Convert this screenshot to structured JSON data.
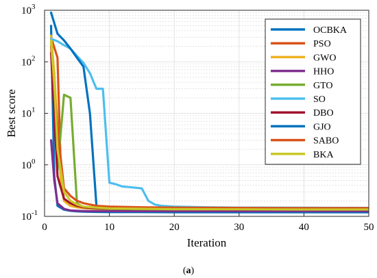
{
  "caption": {
    "open": "(",
    "letter": "a",
    "close": ")"
  },
  "chart_data": {
    "type": "line",
    "xlabel": "Iteration",
    "ylabel": "Best score",
    "xlim": [
      0,
      50
    ],
    "ylim": [
      0.1,
      1000
    ],
    "yscale": "log",
    "grid": true,
    "legend_position": "top-right",
    "xticks": [
      {
        "value": 0,
        "label": "0"
      },
      {
        "value": 10,
        "label": "10"
      },
      {
        "value": 20,
        "label": "20"
      },
      {
        "value": 30,
        "label": "30"
      },
      {
        "value": 40,
        "label": "40"
      },
      {
        "value": 50,
        "label": "50"
      }
    ],
    "yticks": [
      {
        "value": 0.1,
        "base": "10",
        "exp": "-1"
      },
      {
        "value": 1,
        "base": "10",
        "exp": "0"
      },
      {
        "value": 10,
        "base": "10",
        "exp": "1"
      },
      {
        "value": 100,
        "base": "10",
        "exp": "2"
      },
      {
        "value": 1000,
        "base": "10",
        "exp": "3"
      }
    ],
    "series": [
      {
        "name": "OCBKA",
        "color": "#0072BD",
        "x": [
          1,
          1.5,
          2,
          3,
          4,
          5,
          6,
          8,
          10,
          15,
          20,
          30,
          40,
          50
        ],
        "y": [
          500,
          0.6,
          0.16,
          0.135,
          0.128,
          0.125,
          0.123,
          0.122,
          0.121,
          0.121,
          0.12,
          0.12,
          0.12,
          0.12
        ]
      },
      {
        "name": "PSO",
        "color": "#D95319",
        "x": [
          1,
          2,
          2.5,
          3,
          4,
          5,
          6,
          8,
          10,
          15,
          20,
          30,
          40,
          50
        ],
        "y": [
          300,
          120,
          0.8,
          0.2,
          0.16,
          0.15,
          0.145,
          0.14,
          0.138,
          0.136,
          0.135,
          0.135,
          0.135,
          0.135
        ]
      },
      {
        "name": "GWO",
        "color": "#EDB120",
        "x": [
          1,
          1.5,
          2,
          2.5,
          3,
          4,
          5,
          6,
          8,
          10,
          15,
          20,
          30,
          40,
          50
        ],
        "y": [
          320,
          60,
          5,
          0.5,
          0.2,
          0.16,
          0.15,
          0.145,
          0.14,
          0.138,
          0.135,
          0.133,
          0.132,
          0.132,
          0.132
        ]
      },
      {
        "name": "HHO",
        "color": "#7E2F8E",
        "x": [
          1,
          1.5,
          2,
          3,
          4,
          5,
          6,
          8,
          10,
          15,
          20,
          30,
          40,
          50
        ],
        "y": [
          3,
          0.5,
          0.18,
          0.14,
          0.13,
          0.128,
          0.127,
          0.126,
          0.126,
          0.126,
          0.126,
          0.126,
          0.126,
          0.126
        ]
      },
      {
        "name": "GTO",
        "color": "#77AC30",
        "x": [
          1,
          2,
          3,
          4,
          5,
          6,
          8,
          10,
          15,
          20,
          30,
          40,
          50
        ],
        "y": [
          250,
          0.8,
          23,
          20,
          0.18,
          0.15,
          0.143,
          0.14,
          0.138,
          0.137,
          0.137,
          0.137,
          0.137
        ]
      },
      {
        "name": "SO",
        "color": "#4DBEEE",
        "x": [
          1,
          2,
          3,
          4,
          5,
          6,
          7,
          8,
          9,
          10,
          11,
          12,
          13,
          14,
          15,
          16,
          17,
          18,
          20,
          25,
          30,
          40,
          50
        ],
        "y": [
          280,
          250,
          210,
          180,
          130,
          95,
          60,
          30,
          30,
          0.45,
          0.42,
          0.38,
          0.37,
          0.36,
          0.35,
          0.2,
          0.17,
          0.16,
          0.155,
          0.15,
          0.148,
          0.147,
          0.146
        ]
      },
      {
        "name": "DBO",
        "color": "#A2142F",
        "x": [
          1,
          2,
          3,
          4,
          5,
          6,
          8,
          10,
          15,
          20,
          30,
          40,
          50
        ],
        "y": [
          150,
          0.6,
          0.22,
          0.18,
          0.16,
          0.15,
          0.145,
          0.142,
          0.14,
          0.138,
          0.137,
          0.137,
          0.137
        ]
      },
      {
        "name": "GJO",
        "color": "#0072BD",
        "x": [
          1,
          2,
          3,
          4,
          5,
          6,
          7,
          8,
          9,
          10,
          15,
          20,
          30,
          40,
          50
        ],
        "y": [
          900,
          350,
          260,
          180,
          120,
          80,
          10,
          0.16,
          0.15,
          0.148,
          0.145,
          0.144,
          0.143,
          0.142,
          0.142
        ]
      },
      {
        "name": "SABO",
        "color": "#D95319",
        "x": [
          1,
          2,
          3,
          4,
          5,
          6,
          7,
          8,
          10,
          15,
          20,
          30,
          40,
          50
        ],
        "y": [
          200,
          5,
          0.35,
          0.25,
          0.2,
          0.18,
          0.17,
          0.16,
          0.155,
          0.15,
          0.148,
          0.146,
          0.145,
          0.145
        ]
      },
      {
        "name": "BKA",
        "color": "#C8C828",
        "x": [
          1,
          1.5,
          2,
          3,
          4,
          5,
          6,
          8,
          10,
          15,
          20,
          30,
          40,
          50
        ],
        "y": [
          260,
          40,
          2,
          0.3,
          0.2,
          0.17,
          0.155,
          0.148,
          0.143,
          0.14,
          0.138,
          0.137,
          0.136,
          0.136
        ]
      }
    ]
  }
}
